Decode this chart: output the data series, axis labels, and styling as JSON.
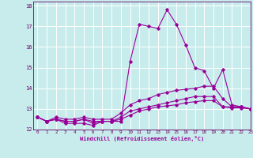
{
  "xlabel": "Windchill (Refroidissement éolien,°C)",
  "xlim": [
    -0.5,
    23
  ],
  "ylim": [
    12,
    18.2
  ],
  "yticks": [
    12,
    13,
    14,
    15,
    16,
    17,
    18
  ],
  "xticks": [
    0,
    1,
    2,
    3,
    4,
    5,
    6,
    7,
    8,
    9,
    10,
    11,
    12,
    13,
    14,
    15,
    16,
    17,
    18,
    19,
    20,
    21,
    22,
    23
  ],
  "background_color": "#c8ecec",
  "grid_color": "#ffffff",
  "line_color": "#990099",
  "series": [
    [
      12.6,
      12.4,
      12.5,
      12.3,
      12.3,
      12.3,
      12.2,
      12.4,
      12.4,
      12.4,
      15.3,
      17.1,
      17.0,
      16.9,
      17.8,
      17.1,
      16.1,
      15.0,
      14.85,
      14.0,
      14.9,
      13.2,
      13.1,
      13.0
    ],
    [
      12.6,
      12.4,
      12.6,
      12.5,
      12.5,
      12.6,
      12.5,
      12.5,
      12.5,
      12.8,
      13.2,
      13.4,
      13.5,
      13.7,
      13.8,
      13.9,
      13.95,
      14.0,
      14.1,
      14.1,
      13.5,
      13.1,
      13.1,
      13.0
    ],
    [
      12.6,
      12.4,
      12.5,
      12.4,
      12.4,
      12.5,
      12.4,
      12.4,
      12.4,
      12.6,
      12.9,
      13.0,
      13.1,
      13.2,
      13.3,
      13.4,
      13.5,
      13.6,
      13.6,
      13.6,
      13.1,
      13.1,
      13.1,
      13.0
    ],
    [
      12.6,
      12.4,
      12.5,
      12.4,
      12.4,
      12.5,
      12.3,
      12.4,
      12.4,
      12.5,
      12.7,
      12.9,
      13.0,
      13.1,
      13.15,
      13.2,
      13.3,
      13.35,
      13.4,
      13.4,
      13.1,
      13.05,
      13.05,
      13.0
    ]
  ]
}
